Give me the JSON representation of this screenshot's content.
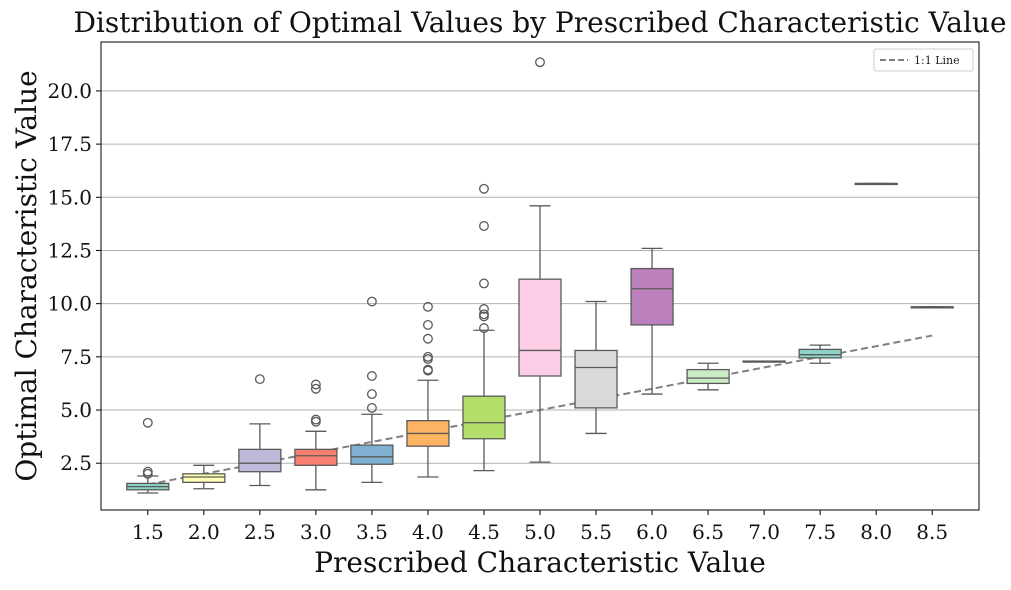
{
  "chart_data": {
    "type": "box",
    "title": "Distribution of Optimal Values by Prescribed Characteristic Value",
    "xlabel": "Prescribed Characteristic Value",
    "ylabel": "Optimal Characteristic Value",
    "ylim": [
      0.3,
      22.3
    ],
    "y_ticks": [
      "2.5",
      "5.0",
      "7.5",
      "10.0",
      "12.5",
      "15.0",
      "17.5",
      "20.0"
    ],
    "grid": "horizontal",
    "legend": {
      "placement": "top-right",
      "entries": [
        {
          "label": "1:1 Line",
          "style": "dashed",
          "color": "#808080"
        }
      ]
    },
    "reference_line": {
      "label": "1:1 Line",
      "from": [
        1.5,
        1.5
      ],
      "to": [
        8.5,
        8.5
      ]
    },
    "boxes": [
      {
        "label": "1.5",
        "color": "#8dd3c7",
        "whisker_low": 1.1,
        "q1": 1.25,
        "median": 1.4,
        "q3": 1.55,
        "whisker_high": 1.9,
        "outliers": [
          2.0,
          2.1,
          4.4
        ]
      },
      {
        "label": "2.0",
        "color": "#ffffb3",
        "whisker_low": 1.3,
        "q1": 1.6,
        "median": 1.85,
        "q3": 2.0,
        "whisker_high": 2.4,
        "outliers": []
      },
      {
        "label": "2.5",
        "color": "#bebada",
        "whisker_low": 1.45,
        "q1": 2.1,
        "median": 2.5,
        "q3": 3.15,
        "whisker_high": 4.35,
        "outliers": [
          6.45
        ]
      },
      {
        "label": "3.0",
        "color": "#fb8072",
        "whisker_low": 1.25,
        "q1": 2.4,
        "median": 2.85,
        "q3": 3.15,
        "whisker_high": 4.0,
        "outliers": [
          4.45,
          4.55,
          6.0,
          6.2
        ]
      },
      {
        "label": "3.5",
        "color": "#80b1d3",
        "whisker_low": 1.6,
        "q1": 2.45,
        "median": 2.8,
        "q3": 3.35,
        "whisker_high": 4.8,
        "outliers": [
          5.1,
          5.75,
          6.6,
          10.1
        ]
      },
      {
        "label": "4.0",
        "color": "#fdb462",
        "whisker_low": 1.85,
        "q1": 3.3,
        "median": 3.9,
        "q3": 4.5,
        "whisker_high": 6.4,
        "outliers": [
          6.85,
          6.9,
          7.4,
          7.5,
          8.35,
          9.0,
          9.85
        ]
      },
      {
        "label": "4.5",
        "color": "#b3de69",
        "whisker_low": 2.15,
        "q1": 3.65,
        "median": 4.4,
        "q3": 5.65,
        "whisker_high": 8.75,
        "outliers": [
          8.85,
          9.4,
          9.5,
          9.75,
          10.95,
          13.65,
          15.4
        ]
      },
      {
        "label": "5.0",
        "color": "#fccde5",
        "whisker_low": 2.55,
        "q1": 6.6,
        "median": 7.8,
        "q3": 11.15,
        "whisker_high": 14.6,
        "outliers": [
          21.35
        ]
      },
      {
        "label": "5.5",
        "color": "#d9d9d9",
        "whisker_low": 3.9,
        "q1": 5.1,
        "median": 7.0,
        "q3": 7.8,
        "whisker_high": 10.1,
        "outliers": []
      },
      {
        "label": "6.0",
        "color": "#bc80bd",
        "whisker_low": 5.75,
        "q1": 9.0,
        "median": 10.7,
        "q3": 11.65,
        "whisker_high": 12.6,
        "outliers": []
      },
      {
        "label": "6.5",
        "color": "#ccebc5",
        "whisker_low": 5.95,
        "q1": 6.25,
        "median": 6.5,
        "q3": 6.9,
        "whisker_high": 7.2,
        "outliers": []
      },
      {
        "label": "7.0",
        "color": "#ffed6f",
        "whisker_low": 7.3,
        "q1": 7.3,
        "median": 7.3,
        "q3": 7.3,
        "whisker_high": 7.3,
        "outliers": []
      },
      {
        "label": "7.5",
        "color": "#8dd3c7",
        "whisker_low": 7.2,
        "q1": 7.45,
        "median": 7.6,
        "q3": 7.85,
        "whisker_high": 8.05,
        "outliers": []
      },
      {
        "label": "8.0",
        "color": "#ffffb3",
        "whisker_low": 15.65,
        "q1": 15.65,
        "median": 15.65,
        "q3": 15.65,
        "whisker_high": 15.65,
        "outliers": []
      },
      {
        "label": "8.5",
        "color": "#bebada",
        "whisker_low": 9.85,
        "q1": 9.85,
        "median": 9.85,
        "q3": 9.85,
        "whisker_high": 9.85,
        "outliers": []
      }
    ]
  }
}
